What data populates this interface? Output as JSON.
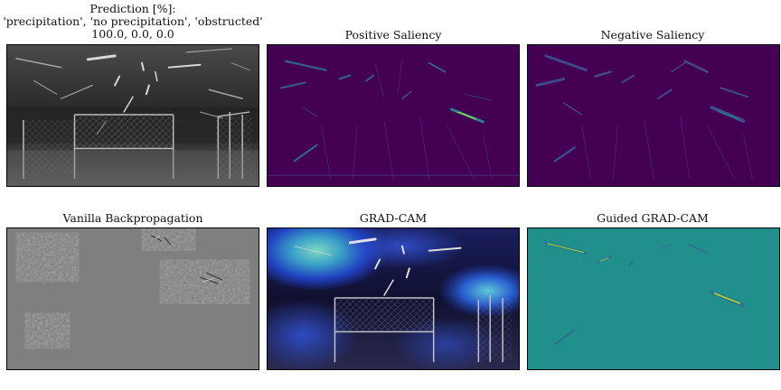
{
  "figure": {
    "panels": [
      {
        "id": "input",
        "title_lines": [
          "Prediction [%]:",
          "'precipitation', 'no precipitation', 'obstructed'",
          "100.0, 0.0, 0.0"
        ]
      },
      {
        "id": "positive-saliency",
        "title": "Positive Saliency"
      },
      {
        "id": "negative-saliency",
        "title": "Negative Saliency"
      },
      {
        "id": "vanilla-backprop",
        "title": "Vanilla Backpropagation"
      },
      {
        "id": "grad-cam",
        "title": "GRAD-CAM"
      },
      {
        "id": "guided-grad-cam",
        "title": "Guided GRAD-CAM"
      }
    ],
    "colors": {
      "viridis_bg": "#440154",
      "teal_bg": "#21908c",
      "streak_bright": "#aadc32",
      "streak_mid": "#31688e",
      "gray_bg": "#7f7f7f"
    }
  }
}
